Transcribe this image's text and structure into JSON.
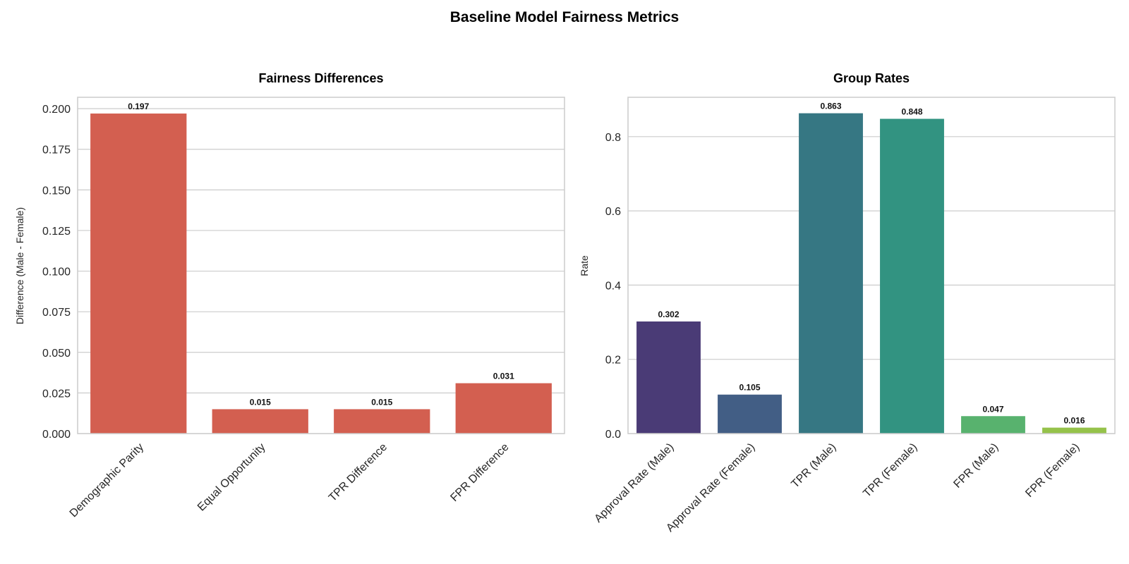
{
  "figure": {
    "title": "Baseline Model Fairness Metrics"
  },
  "chart_data": [
    {
      "type": "bar",
      "title": "Fairness Differences",
      "xlabel": "",
      "ylabel": "Difference (Male - Female)",
      "categories": [
        "Demographic Parity",
        "Equal Opportunity",
        "TPR Difference",
        "FPR Difference"
      ],
      "values": [
        0.197,
        0.015,
        0.015,
        0.031
      ],
      "data_labels": [
        "0.197",
        "0.015",
        "0.015",
        "0.031"
      ],
      "ylim": [
        0,
        0.207
      ],
      "yticks": [
        0,
        0.025,
        0.05,
        0.075,
        0.1,
        0.125,
        0.15,
        0.175,
        0.2
      ],
      "ytick_labels": [
        "0.000",
        "0.025",
        "0.050",
        "0.075",
        "0.100",
        "0.125",
        "0.150",
        "0.175",
        "0.200"
      ],
      "grid": true,
      "colors": [
        "#d35f50",
        "#d35f50",
        "#d35f50",
        "#d35f50"
      ]
    },
    {
      "type": "bar",
      "title": "Group Rates",
      "xlabel": "",
      "ylabel": "Rate",
      "categories": [
        "Approval Rate (Male)",
        "Approval Rate (Female)",
        "TPR (Male)",
        "TPR (Female)",
        "FPR (Male)",
        "FPR (Female)"
      ],
      "values": [
        0.302,
        0.105,
        0.863,
        0.848,
        0.047,
        0.016
      ],
      "data_labels": [
        "0.302",
        "0.105",
        "0.863",
        "0.848",
        "0.047",
        "0.016"
      ],
      "ylim": [
        0,
        0.906
      ],
      "yticks": [
        0,
        0.2,
        0.4,
        0.6,
        0.8
      ],
      "ytick_labels": [
        "0.0",
        "0.2",
        "0.4",
        "0.6",
        "0.8"
      ],
      "grid": true,
      "colors": [
        "#4a3b76",
        "#425e85",
        "#367783",
        "#329381",
        "#58b26e",
        "#95c24a"
      ]
    }
  ]
}
